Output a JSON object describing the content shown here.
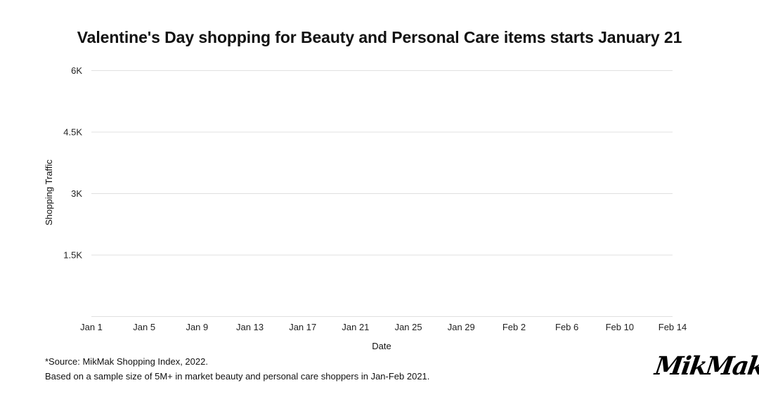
{
  "chart_data": {
    "type": "line",
    "title": "Valentine's Day shopping for Beauty and Personal Care items starts January 21",
    "xlabel": "Date",
    "ylabel": "Shopping Traffic",
    "x_ticks": [
      "Jan 1",
      "Jan 5",
      "Jan 9",
      "Jan 13",
      "Jan 17",
      "Jan 21",
      "Jan 25",
      "Jan 29",
      "Feb 2",
      "Feb 6",
      "Feb 10",
      "Feb 14"
    ],
    "y_ticks": [
      {
        "value": 1500,
        "label": "1.5K"
      },
      {
        "value": 3000,
        "label": "3K"
      },
      {
        "value": 4500,
        "label": "4.5K"
      },
      {
        "value": 6000,
        "label": "6K"
      }
    ],
    "ylim": [
      0,
      6000
    ],
    "grid": true,
    "series": []
  },
  "footnote": {
    "line1": "*Source: MikMak Shopping Index, 2022.",
    "line2": "Based on a sample size of 5M+ in market beauty and personal care shoppers in Jan-Feb 2021."
  },
  "logo": {
    "text": "MikMak"
  }
}
